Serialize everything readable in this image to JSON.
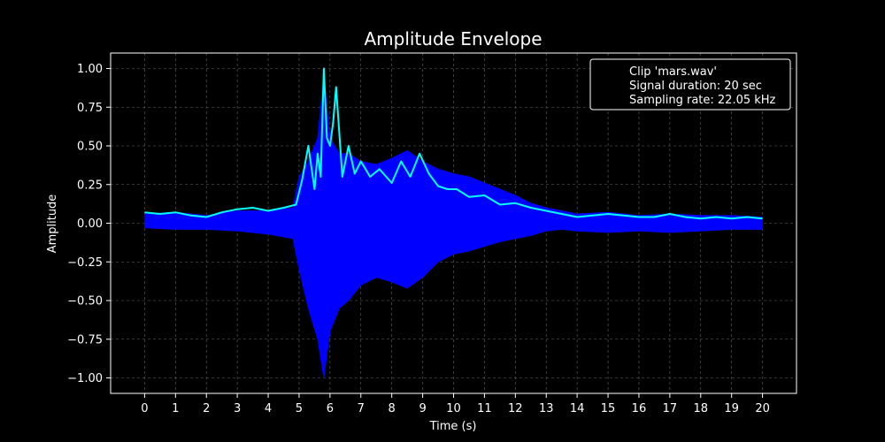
{
  "chart_data": {
    "type": "line",
    "title": "Amplitude Envelope",
    "xlabel": "Time (s)",
    "ylabel": "Amplitude",
    "xlim": [
      -1.1,
      21.1
    ],
    "ylim": [
      -1.1,
      1.1
    ],
    "x_ticks": [
      0,
      1,
      2,
      3,
      4,
      5,
      6,
      7,
      8,
      9,
      10,
      11,
      12,
      13,
      14,
      15,
      16,
      17,
      18,
      19,
      20
    ],
    "y_ticks": [
      -1.0,
      -0.75,
      -0.5,
      -0.25,
      0.0,
      0.25,
      0.5,
      0.75,
      1.0
    ],
    "y_tick_labels": [
      "−1.00",
      "−0.75",
      "−0.50",
      "−0.25",
      "0.00",
      "0.25",
      "0.50",
      "0.75",
      "1.00"
    ],
    "grid": true,
    "background": "#000000",
    "legend": {
      "position": "top-right",
      "entries": [
        "Clip 'mars.wav'",
        "Signal duration: 20 sec",
        "Sampling rate: 22.05 kHz"
      ]
    },
    "series": [
      {
        "color": "#0000ff",
        "kind": "waveform-band",
        "x": [
          0,
          1,
          2,
          3,
          4,
          4.8,
          5.0,
          5.3,
          5.6,
          5.8,
          6.0,
          6.3,
          6.6,
          7.0,
          7.5,
          8.0,
          8.5,
          9.0,
          9.5,
          10.0,
          10.5,
          11.0,
          11.5,
          12.0,
          12.5,
          13.0,
          13.5,
          14.0,
          15.0,
          16.0,
          17.0,
          18.0,
          19.0,
          20.0
        ],
        "upper": [
          0.06,
          0.07,
          0.05,
          0.08,
          0.08,
          0.1,
          0.3,
          0.4,
          0.55,
          0.95,
          0.55,
          0.45,
          0.45,
          0.4,
          0.38,
          0.42,
          0.47,
          0.4,
          0.35,
          0.32,
          0.3,
          0.26,
          0.22,
          0.18,
          0.13,
          0.1,
          0.08,
          0.06,
          0.07,
          0.05,
          0.06,
          0.05,
          0.05,
          0.04
        ],
        "lower": [
          -0.03,
          -0.04,
          -0.04,
          -0.05,
          -0.07,
          -0.1,
          -0.3,
          -0.55,
          -0.75,
          -1.0,
          -0.7,
          -0.55,
          -0.5,
          -0.4,
          -0.35,
          -0.38,
          -0.42,
          -0.35,
          -0.25,
          -0.2,
          -0.18,
          -0.15,
          -0.12,
          -0.1,
          -0.08,
          -0.05,
          -0.04,
          -0.05,
          -0.06,
          -0.05,
          -0.06,
          -0.05,
          -0.04,
          -0.04
        ]
      },
      {
        "color": "#00ffff",
        "kind": "envelope",
        "x": [
          0,
          0.5,
          1.0,
          1.5,
          2.0,
          2.5,
          3.0,
          3.5,
          4.0,
          4.5,
          4.9,
          5.1,
          5.3,
          5.5,
          5.6,
          5.7,
          5.8,
          5.9,
          6.0,
          6.1,
          6.2,
          6.4,
          6.6,
          6.8,
          7.0,
          7.3,
          7.6,
          8.0,
          8.3,
          8.6,
          8.9,
          9.2,
          9.5,
          9.8,
          10.1,
          10.5,
          11.0,
          11.5,
          12.0,
          12.5,
          13.0,
          13.5,
          14.0,
          14.5,
          15.0,
          15.5,
          16.0,
          16.5,
          17.0,
          17.5,
          18.0,
          18.5,
          19.0,
          19.5,
          20.0
        ],
        "y": [
          0.07,
          0.06,
          0.07,
          0.05,
          0.04,
          0.07,
          0.09,
          0.1,
          0.08,
          0.1,
          0.12,
          0.28,
          0.5,
          0.22,
          0.45,
          0.3,
          1.0,
          0.55,
          0.5,
          0.65,
          0.88,
          0.3,
          0.5,
          0.32,
          0.4,
          0.3,
          0.35,
          0.26,
          0.4,
          0.3,
          0.45,
          0.32,
          0.24,
          0.22,
          0.22,
          0.17,
          0.18,
          0.12,
          0.13,
          0.1,
          0.08,
          0.06,
          0.04,
          0.05,
          0.06,
          0.05,
          0.04,
          0.04,
          0.06,
          0.04,
          0.03,
          0.04,
          0.03,
          0.04,
          0.03
        ]
      }
    ]
  }
}
